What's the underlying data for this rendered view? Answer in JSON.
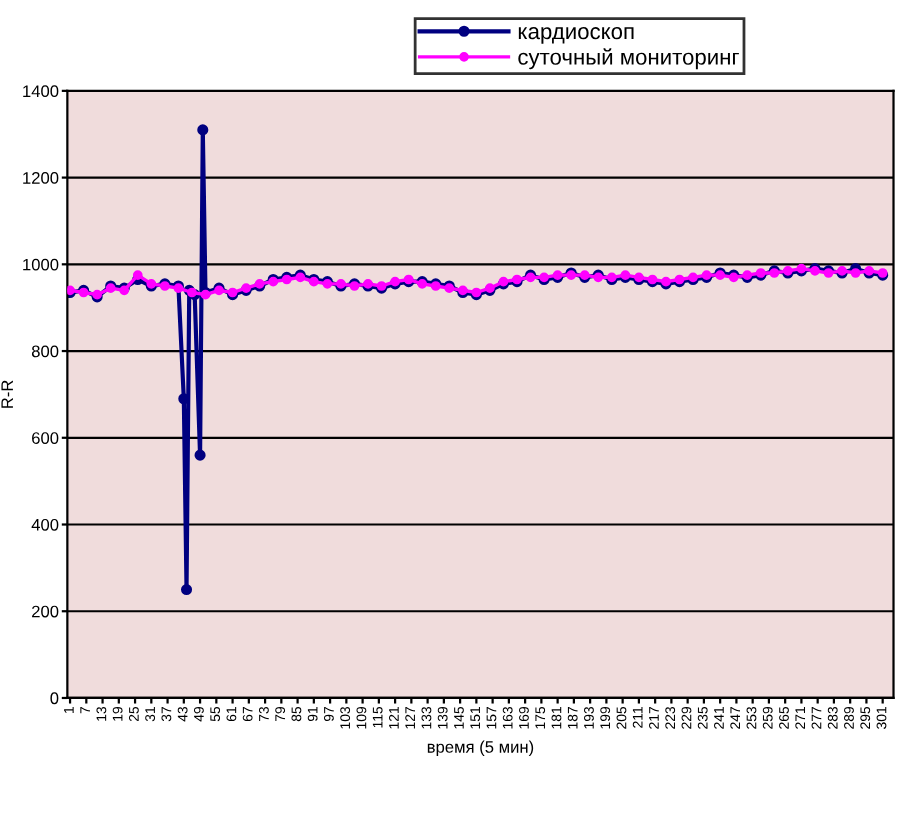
{
  "chart_data": {
    "type": "line",
    "xlabel": "время (5 мин)",
    "ylabel": "R-R",
    "xlim": [
      0,
      305
    ],
    "xticks": [
      1,
      7,
      13,
      19,
      25,
      31,
      37,
      43,
      49,
      55,
      61,
      67,
      73,
      79,
      85,
      91,
      97,
      103,
      109,
      115,
      121,
      127,
      133,
      139,
      145,
      151,
      157,
      163,
      169,
      175,
      181,
      187,
      193,
      199,
      205,
      211,
      217,
      223,
      229,
      235,
      241,
      247,
      253,
      259,
      265,
      271,
      277,
      283,
      289,
      295,
      301
    ],
    "ylim": [
      0,
      1400
    ],
    "yticks": [
      0,
      200,
      400,
      600,
      800,
      1000,
      1200,
      1400
    ],
    "grid": "y",
    "legend": "top",
    "marker": "circle",
    "line_style": "solid",
    "series": [
      {
        "name": "кардиоскоп",
        "color": "#000080",
        "x": [
          1,
          6,
          11,
          16,
          21,
          26,
          31,
          36,
          41,
          43,
          44,
          45,
          47,
          49,
          50,
          51,
          56,
          61,
          66,
          71,
          76,
          81,
          86,
          91,
          96,
          101,
          106,
          111,
          116,
          121,
          126,
          131,
          136,
          141,
          146,
          151,
          156,
          161,
          166,
          171,
          176,
          181,
          186,
          191,
          196,
          201,
          206,
          211,
          216,
          221,
          226,
          231,
          236,
          241,
          246,
          251,
          256,
          261,
          266,
          271,
          276,
          281,
          286,
          291,
          296,
          301
        ],
        "values": [
          935,
          940,
          925,
          950,
          945,
          965,
          950,
          955,
          950,
          690,
          250,
          940,
          930,
          560,
          1310,
          935,
          945,
          930,
          940,
          950,
          965,
          970,
          975,
          965,
          960,
          950,
          955,
          950,
          945,
          955,
          960,
          960,
          955,
          950,
          935,
          930,
          940,
          955,
          960,
          975,
          965,
          970,
          980,
          970,
          975,
          965,
          970,
          965,
          960,
          955,
          960,
          965,
          970,
          980,
          975,
          970,
          975,
          985,
          980,
          985,
          990,
          985,
          980,
          990,
          980,
          975
        ]
      },
      {
        "name": "суточный мониторинг",
        "color": "#ff00ff",
        "x": [
          1,
          6,
          11,
          16,
          21,
          26,
          31,
          36,
          41,
          46,
          51,
          56,
          61,
          66,
          71,
          76,
          81,
          86,
          91,
          96,
          101,
          106,
          111,
          116,
          121,
          126,
          131,
          136,
          141,
          146,
          151,
          156,
          161,
          166,
          171,
          176,
          181,
          186,
          191,
          196,
          201,
          206,
          211,
          216,
          221,
          226,
          231,
          236,
          241,
          246,
          251,
          256,
          261,
          266,
          271,
          276,
          281,
          286,
          291,
          296,
          301
        ],
        "values": [
          940,
          935,
          930,
          945,
          940,
          975,
          955,
          950,
          945,
          935,
          930,
          940,
          935,
          945,
          955,
          960,
          965,
          970,
          960,
          955,
          955,
          950,
          955,
          950,
          960,
          965,
          955,
          950,
          945,
          940,
          935,
          945,
          960,
          965,
          970,
          970,
          975,
          975,
          975,
          970,
          970,
          975,
          970,
          965,
          960,
          965,
          970,
          975,
          975,
          970,
          975,
          980,
          980,
          985,
          990,
          985,
          980,
          985,
          980,
          985,
          980
        ]
      }
    ]
  }
}
